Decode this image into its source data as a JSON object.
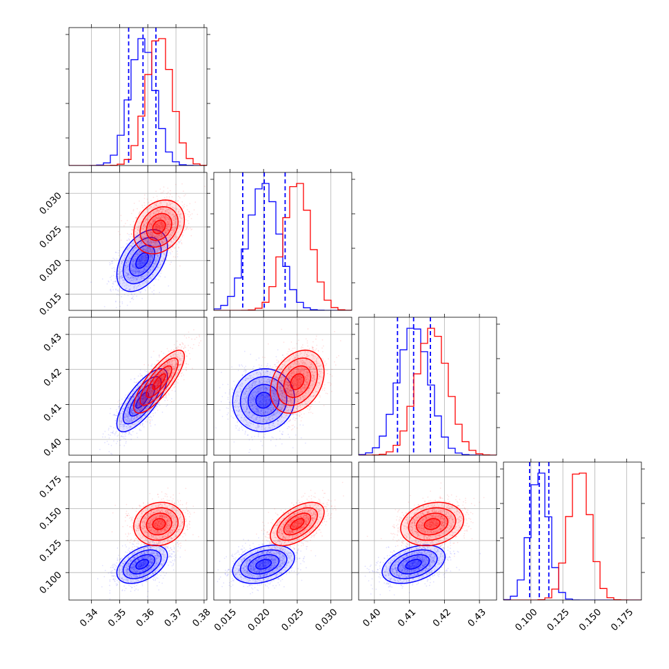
{
  "chart_data": {
    "type": "corner",
    "parameters": [
      {
        "ticks": [
          0.34,
          0.35,
          0.36,
          0.37,
          0.38
        ],
        "tick_labels": [
          "0.34",
          "0.35",
          "0.36",
          "0.37",
          "0.38"
        ],
        "range": [
          0.332,
          0.381
        ]
      },
      {
        "ticks": [
          0.015,
          0.02,
          0.025,
          0.03
        ],
        "tick_labels": [
          "0.015",
          "0.020",
          "0.025",
          "0.030"
        ],
        "range": [
          0.0126,
          0.0331
        ]
      },
      {
        "ticks": [
          0.4,
          0.41,
          0.42,
          0.43
        ],
        "tick_labels": [
          "0.40",
          "0.41",
          "0.42",
          "0.43"
        ],
        "range": [
          0.3955,
          0.4349
        ]
      },
      {
        "ticks": [
          0.1,
          0.125,
          0.15,
          0.175
        ],
        "tick_labels": [
          "0.100",
          "0.125",
          "0.150",
          "0.175"
        ],
        "range": [
          0.0785,
          0.1865
        ]
      }
    ],
    "series": [
      {
        "color": "#0000ff",
        "means": [
          0.358,
          0.02,
          0.4112,
          0.1065
        ],
        "sigmas": [
          0.0045,
          0.0023,
          0.0045,
          0.0075
        ],
        "quantiles": [
          [
            0.3532,
            0.3583,
            0.3629
          ],
          [
            0.0169,
            0.0201,
            0.0232
          ],
          [
            0.4066,
            0.4112,
            0.416
          ],
          [
            0.099,
            0.1065,
            0.114
          ]
        ],
        "correlations": {
          "0-1": 0.45,
          "0-2": 0.75,
          "0-3": 0.45,
          "1-2": 0.05,
          "1-3": 0.35,
          "2-3": 0.4
        }
      },
      {
        "color": "#ff0000",
        "means": [
          0.364,
          0.025,
          0.4165,
          0.138
        ],
        "sigmas": [
          0.0045,
          0.002,
          0.0045,
          0.0085
        ],
        "quantiles": [],
        "correlations": {
          "0-1": 0.25,
          "0-2": 0.8,
          "0-3": 0.1,
          "1-2": 0.3,
          "1-3": 0.55,
          "2-3": 0.2
        }
      }
    ]
  }
}
